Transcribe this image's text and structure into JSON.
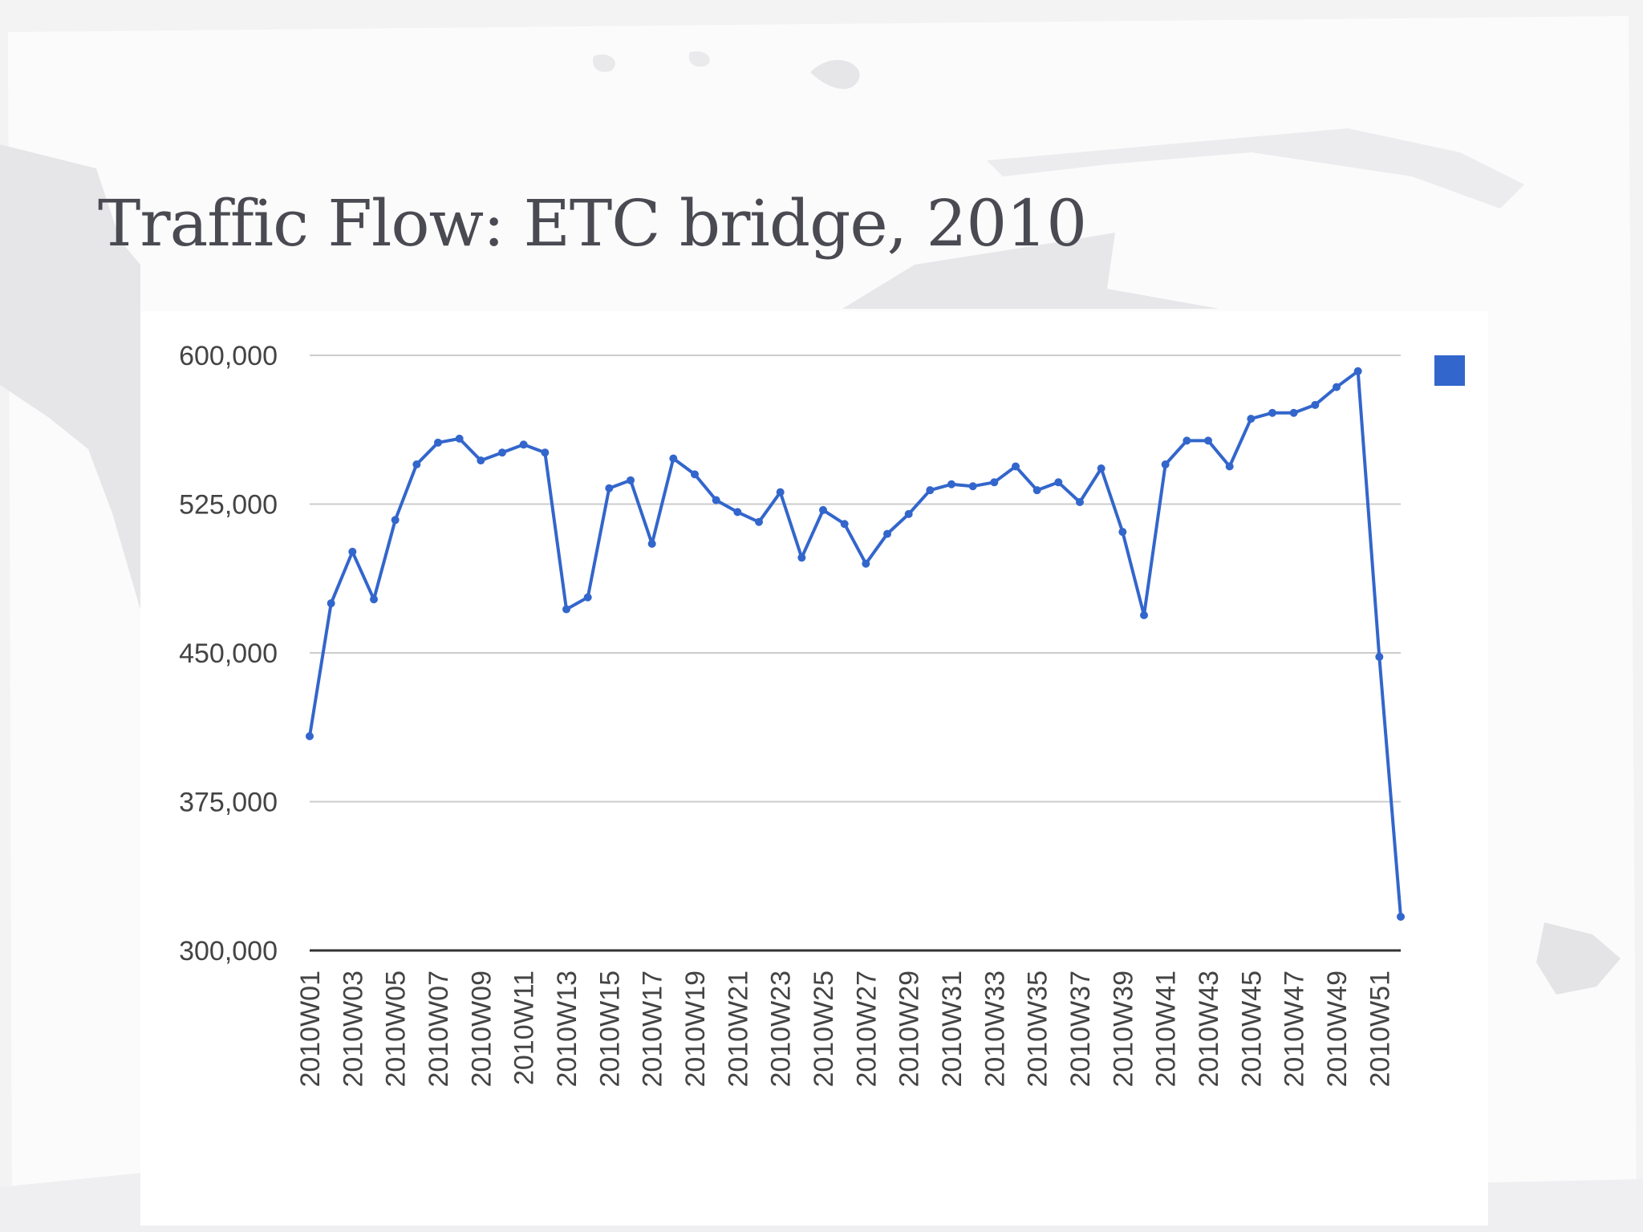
{
  "slide": {
    "title": "Traffic Flow: ETC bridge, 2010"
  },
  "colors": {
    "series": "#3366cc",
    "background": "#ffffff",
    "grunge": "#ebebed",
    "title": "#4a4a52"
  },
  "chart_data": {
    "type": "line",
    "title": "",
    "xlabel": "",
    "ylabel": "",
    "ylim": [
      300000,
      600000
    ],
    "y_ticks": [
      600000,
      525000,
      450000,
      375000,
      300000
    ],
    "y_tick_labels": [
      "600,000",
      "525,000",
      "450,000",
      "375,000",
      "300,000"
    ],
    "grid": true,
    "legend": {
      "position": "right",
      "entries": [
        ""
      ]
    },
    "x": [
      "2010W01",
      "2010W02",
      "2010W03",
      "2010W04",
      "2010W05",
      "2010W06",
      "2010W07",
      "2010W08",
      "2010W09",
      "2010W10",
      "2010W11",
      "2010W12",
      "2010W13",
      "2010W14",
      "2010W15",
      "2010W16",
      "2010W17",
      "2010W18",
      "2010W19",
      "2010W20",
      "2010W21",
      "2010W22",
      "2010W23",
      "2010W24",
      "2010W25",
      "2010W26",
      "2010W27",
      "2010W28",
      "2010W29",
      "2010W30",
      "2010W31",
      "2010W32",
      "2010W33",
      "2010W34",
      "2010W35",
      "2010W36",
      "2010W37",
      "2010W38",
      "2010W39",
      "2010W40",
      "2010W41",
      "2010W42",
      "2010W43",
      "2010W44",
      "2010W45",
      "2010W46",
      "2010W47",
      "2010W48",
      "2010W49",
      "2010W50",
      "2010W51",
      "2010W52"
    ],
    "x_tick_labels": [
      "2010W01",
      "2010W03",
      "2010W05",
      "2010W07",
      "2010W09",
      "2010W11",
      "2010W13",
      "2010W15",
      "2010W17",
      "2010W19",
      "2010W21",
      "2010W23",
      "2010W25",
      "2010W27",
      "2010W29",
      "2010W31",
      "2010W33",
      "2010W35",
      "2010W37",
      "2010W39",
      "2010W41",
      "2010W43",
      "2010W45",
      "2010W47",
      "2010W49",
      "2010W51"
    ],
    "series": [
      {
        "values": [
          408000,
          475000,
          501000,
          477000,
          517000,
          545000,
          556000,
          558000,
          547000,
          551000,
          555000,
          551000,
          472000,
          478000,
          533000,
          537000,
          505000,
          548000,
          540000,
          527000,
          521000,
          516000,
          531000,
          498000,
          522000,
          515000,
          495000,
          510000,
          520000,
          532000,
          535000,
          534000,
          536000,
          544000,
          532000,
          536000,
          526000,
          543000,
          511000,
          469000,
          545000,
          557000,
          557000,
          544000,
          568000,
          571000,
          571000,
          575000,
          584000,
          592000,
          448000,
          317000
        ]
      }
    ]
  }
}
